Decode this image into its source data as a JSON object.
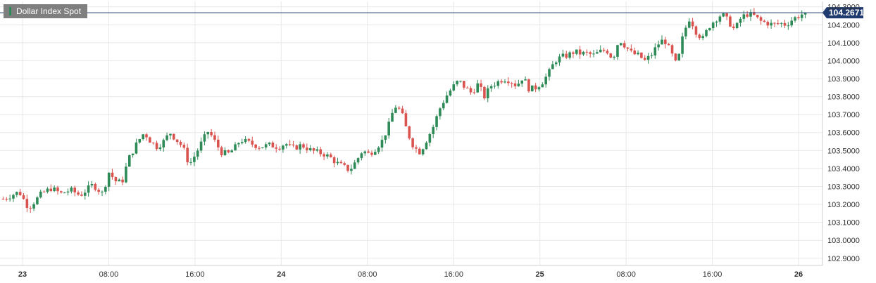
{
  "chart_data": {
    "type": "candlestick",
    "title": "Dollar Index Spot",
    "last_price": "104.2671",
    "ylim": [
      102.86,
      104.33
    ],
    "y_ticks": [
      "104.3000",
      "104.2000",
      "104.1000",
      "104.0000",
      "103.9000",
      "103.8000",
      "103.7000",
      "103.6000",
      "103.5000",
      "103.4000",
      "103.3000",
      "103.2000",
      "103.1000",
      "103.0000",
      "102.9000"
    ],
    "x_ticks": [
      "23",
      "08:00",
      "16:00",
      "24",
      "08:00",
      "16:00",
      "25",
      "08:00",
      "16:00",
      "26"
    ],
    "grid": true,
    "colors": {
      "up": "#2e8b57",
      "down": "#d9534f",
      "grid": "#e8e8e8",
      "axis_text": "#333333",
      "price_line": "#1f3a6e",
      "badge": "#1f3a6e"
    },
    "close_path": [
      [
        0,
        103.23
      ],
      [
        5,
        103.27
      ],
      [
        8,
        103.18
      ],
      [
        12,
        103.26
      ],
      [
        15,
        103.29
      ],
      [
        18,
        103.26
      ],
      [
        21,
        103.28
      ],
      [
        24,
        103.25
      ],
      [
        28,
        103.31
      ],
      [
        31,
        103.26
      ],
      [
        33,
        103.38
      ],
      [
        35,
        103.33
      ],
      [
        37,
        103.32
      ],
      [
        39,
        103.45
      ],
      [
        42,
        103.55
      ],
      [
        44,
        103.6
      ],
      [
        46,
        103.55
      ],
      [
        48,
        103.52
      ],
      [
        50,
        103.55
      ],
      [
        52,
        103.6
      ],
      [
        54,
        103.56
      ],
      [
        56,
        103.52
      ],
      [
        58,
        103.42
      ],
      [
        60,
        103.48
      ],
      [
        62,
        103.55
      ],
      [
        64,
        103.61
      ],
      [
        66,
        103.55
      ],
      [
        68,
        103.49
      ],
      [
        70,
        103.48
      ],
      [
        72,
        103.51
      ],
      [
        74,
        103.56
      ],
      [
        77,
        103.54
      ],
      [
        80,
        103.52
      ],
      [
        83,
        103.53
      ],
      [
        86,
        103.52
      ],
      [
        88,
        103.54
      ],
      [
        90,
        103.51
      ],
      [
        93,
        103.53
      ],
      [
        96,
        103.5
      ],
      [
        98,
        103.49
      ],
      [
        100,
        103.48
      ],
      [
        102,
        103.46
      ],
      [
        104,
        103.43
      ],
      [
        106,
        103.41
      ],
      [
        108,
        103.39
      ],
      [
        110,
        103.44
      ],
      [
        112,
        103.5
      ],
      [
        114,
        103.48
      ],
      [
        116,
        103.51
      ],
      [
        118,
        103.55
      ],
      [
        120,
        103.63
      ],
      [
        122,
        103.75
      ],
      [
        124,
        103.72
      ],
      [
        126,
        103.6
      ],
      [
        128,
        103.52
      ],
      [
        130,
        103.49
      ],
      [
        132,
        103.56
      ],
      [
        134,
        103.63
      ],
      [
        136,
        103.73
      ],
      [
        138,
        103.8
      ],
      [
        140,
        103.85
      ],
      [
        142,
        103.89
      ],
      [
        144,
        103.85
      ],
      [
        146,
        103.82
      ],
      [
        148,
        103.87
      ],
      [
        150,
        103.8
      ],
      [
        152,
        103.86
      ],
      [
        154,
        103.88
      ],
      [
        156,
        103.9
      ],
      [
        158,
        103.89
      ],
      [
        160,
        103.86
      ],
      [
        162,
        103.91
      ],
      [
        164,
        103.84
      ],
      [
        166,
        103.85
      ],
      [
        168,
        103.88
      ],
      [
        170,
        103.93
      ],
      [
        172,
        104.0
      ],
      [
        174,
        104.02
      ],
      [
        176,
        104.03
      ],
      [
        178,
        104.05
      ],
      [
        180,
        104.04
      ],
      [
        182,
        104.04
      ],
      [
        184,
        104.03
      ],
      [
        186,
        104.05
      ],
      [
        188,
        104.06
      ],
      [
        190,
        104.01
      ],
      [
        192,
        104.12
      ],
      [
        194,
        104.08
      ],
      [
        196,
        104.04
      ],
      [
        198,
        104.03
      ],
      [
        200,
        104.0
      ],
      [
        202,
        104.03
      ],
      [
        204,
        104.09
      ],
      [
        206,
        104.12
      ],
      [
        208,
        104.05
      ],
      [
        210,
        103.97
      ],
      [
        212,
        104.15
      ],
      [
        214,
        104.24
      ],
      [
        216,
        104.16
      ],
      [
        218,
        104.12
      ],
      [
        220,
        104.19
      ],
      [
        222,
        104.23
      ],
      [
        224,
        104.26
      ],
      [
        226,
        104.22
      ],
      [
        228,
        104.17
      ],
      [
        230,
        104.24
      ],
      [
        232,
        104.26
      ],
      [
        234,
        104.25
      ],
      [
        236,
        104.22
      ],
      [
        238,
        104.21
      ],
      [
        240,
        104.2
      ],
      [
        242,
        104.21
      ],
      [
        244,
        104.2
      ],
      [
        246,
        104.23
      ],
      [
        248,
        104.25
      ],
      [
        250,
        104.2671
      ]
    ]
  }
}
